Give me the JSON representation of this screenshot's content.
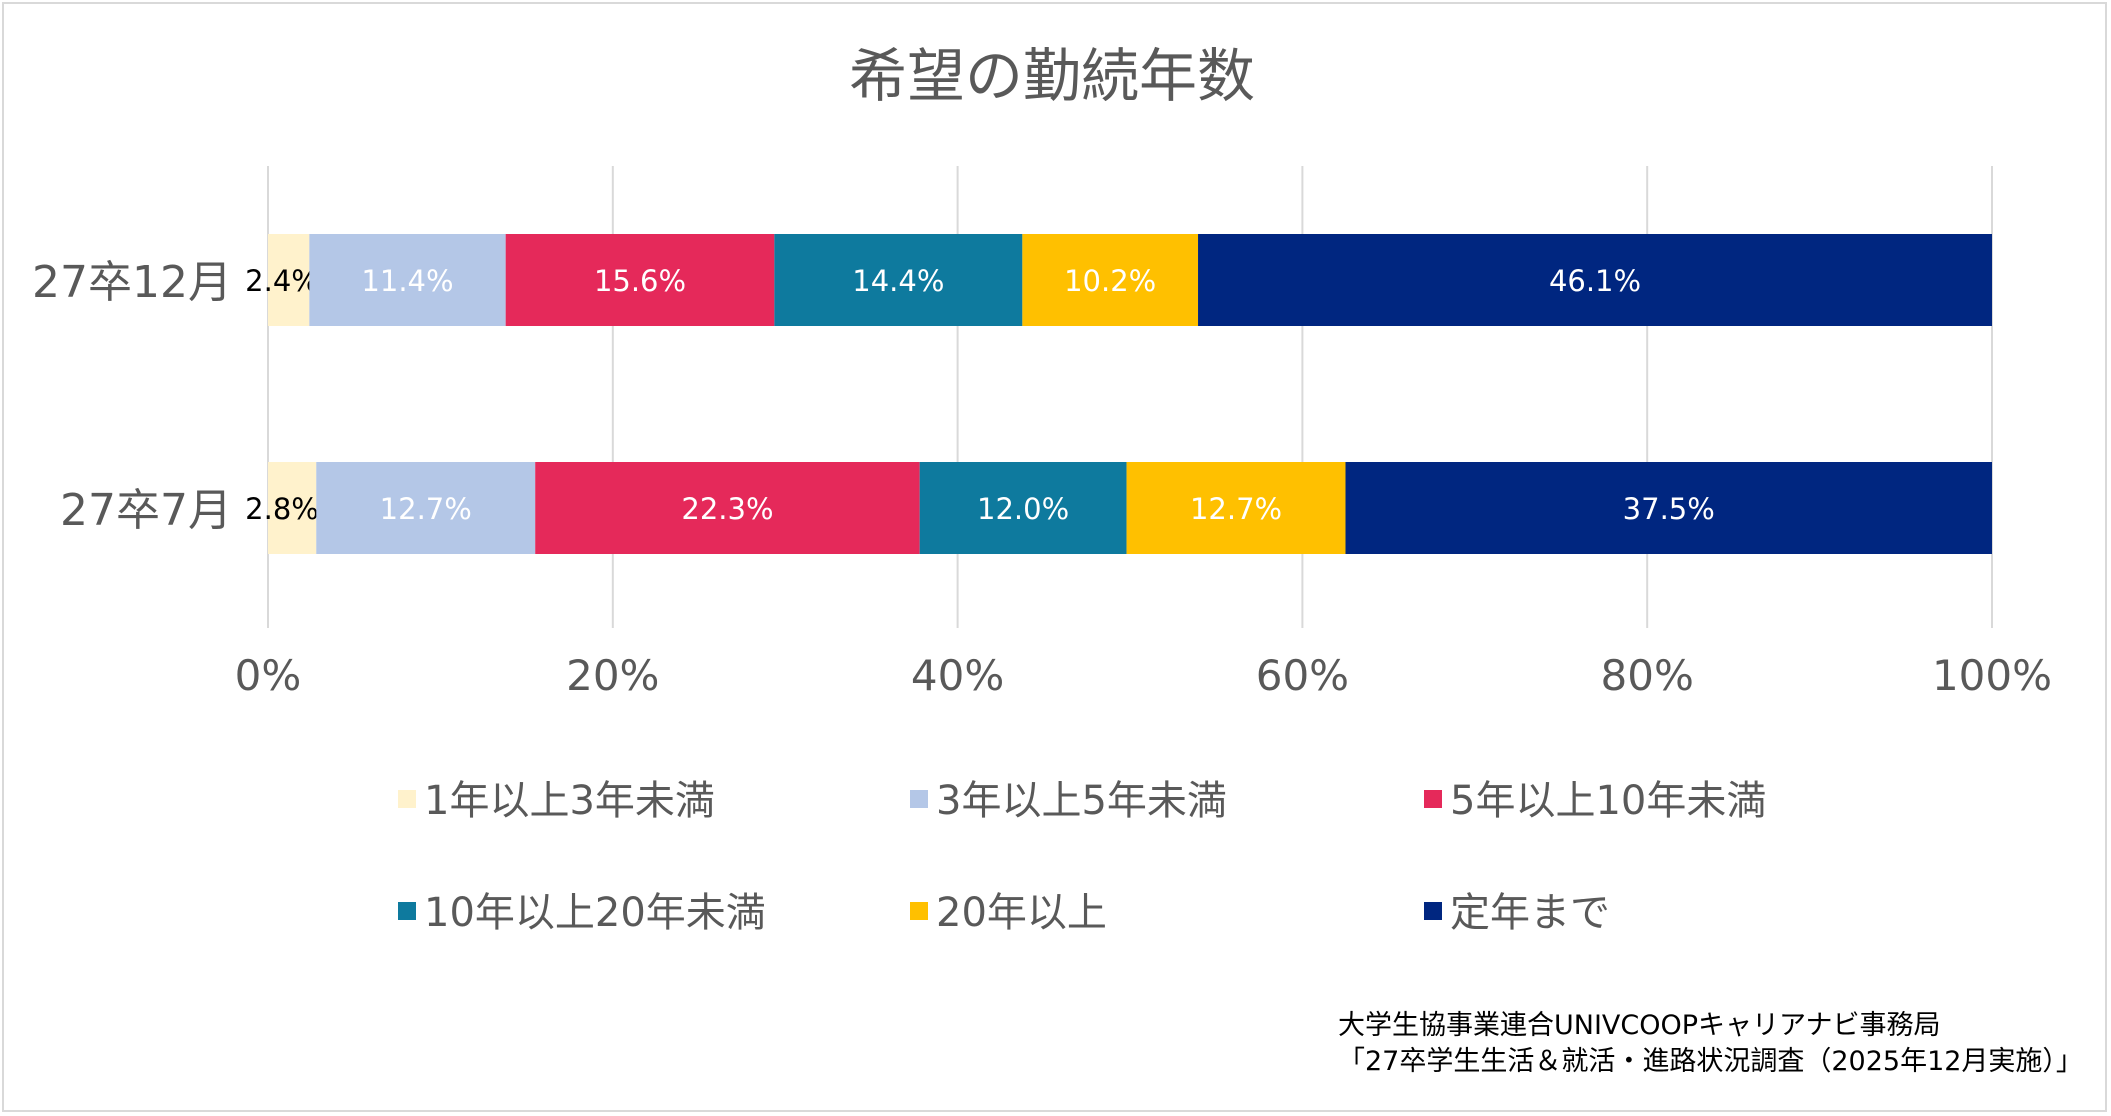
{
  "chart_data": {
    "type": "bar",
    "orientation": "horizontal",
    "stacked": true,
    "percent": true,
    "title": "希望の勤続年数",
    "categories": [
      "27卒12月",
      "27卒7月"
    ],
    "series": [
      {
        "name": "1年以上3年未満",
        "color": "#FFF2CC",
        "label_color": "#000000",
        "values": [
          2.4,
          2.8
        ],
        "labels": [
          "2.4%",
          "2.8%"
        ]
      },
      {
        "name": "3年以上5年未満",
        "color": "#B4C7E7",
        "label_color": "#ffffff",
        "values": [
          11.4,
          12.7
        ],
        "labels": [
          "11.4%",
          "12.7%"
        ]
      },
      {
        "name": "5年以上10年未満",
        "color": "#E5295A",
        "label_color": "#ffffff",
        "values": [
          15.6,
          22.3
        ],
        "labels": [
          "15.6%",
          "22.3%"
        ]
      },
      {
        "name": "10年以上20年未満",
        "color": "#0E7A9E",
        "label_color": "#ffffff",
        "values": [
          14.4,
          12.0
        ],
        "labels": [
          "14.4%",
          "12.0%"
        ]
      },
      {
        "name": "20年以上",
        "color": "#FFC000",
        "label_color": "#ffffff",
        "values": [
          10.2,
          12.7
        ],
        "labels": [
          "10.2%",
          "12.7%"
        ]
      },
      {
        "name": "定年まで",
        "color": "#002680",
        "label_color": "#ffffff",
        "values": [
          46.1,
          37.5
        ],
        "labels": [
          "46.1%",
          "37.5%"
        ]
      }
    ],
    "xlim": [
      0,
      100
    ],
    "xticks": [
      "0%",
      "20%",
      "40%",
      "60%",
      "80%",
      "100%"
    ],
    "grid": true,
    "legend_position": "bottom",
    "source_lines": [
      "大学生協事業連合UNIVCOOPキャリアナビ事務局",
      "「27卒学生生活＆就活・進路状況調査（2025年12月実施）」"
    ]
  }
}
